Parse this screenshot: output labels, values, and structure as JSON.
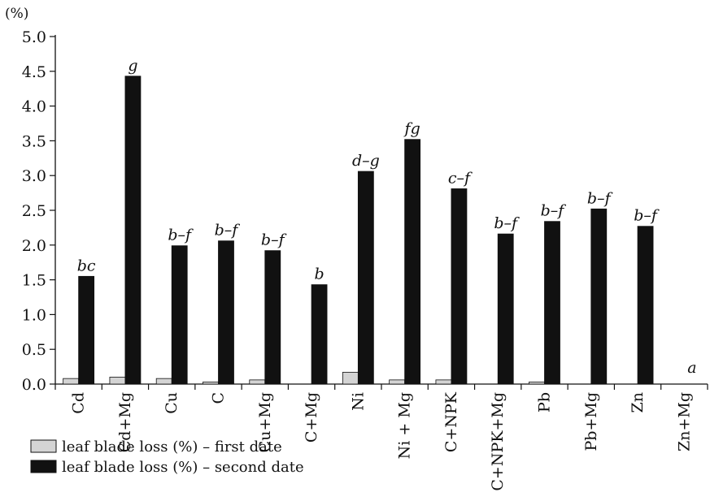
{
  "chart_data": {
    "type": "bar",
    "title": "",
    "xlabel": "",
    "ylabel": "(%)",
    "ylim": [
      0,
      5.0
    ],
    "yticks": [
      "0.0",
      "0.5",
      "1.0",
      "1.5",
      "2.0",
      "2.5",
      "3.0",
      "3.5",
      "4.0",
      "4.5",
      "5.0"
    ],
    "grid": false,
    "legend_position": "bottom-left",
    "categories": [
      "Cd",
      "Cd+Mg",
      "Cu",
      "C",
      "Cu+Mg",
      "C+Mg",
      "Ni",
      "Ni + Mg",
      "C+NPK",
      "C+NPK+Mg",
      "Pb",
      "Pb+Mg",
      "Zn",
      "Zn+Mg"
    ],
    "series": [
      {
        "name": "leaf blade loss  (%) – first date",
        "color": "#d4d4d4",
        "values": [
          0.08,
          0.1,
          0.08,
          0.03,
          0.06,
          0.0,
          0.17,
          0.06,
          0.06,
          0.0,
          0.03,
          0.0,
          0.0,
          0.0
        ]
      },
      {
        "name": "leaf blade loss  (%) – second date",
        "color": "#111111",
        "values": [
          1.55,
          4.43,
          1.99,
          2.06,
          1.92,
          1.43,
          3.06,
          3.52,
          2.81,
          2.16,
          2.34,
          2.52,
          2.27,
          0.0
        ]
      }
    ],
    "annotations": [
      "bc",
      "g",
      "b–f",
      "b–f",
      "b–f",
      "b",
      "d–g",
      "fg",
      "c–f",
      "b–f",
      "b–f",
      "b–f",
      "b–f",
      "a"
    ]
  }
}
